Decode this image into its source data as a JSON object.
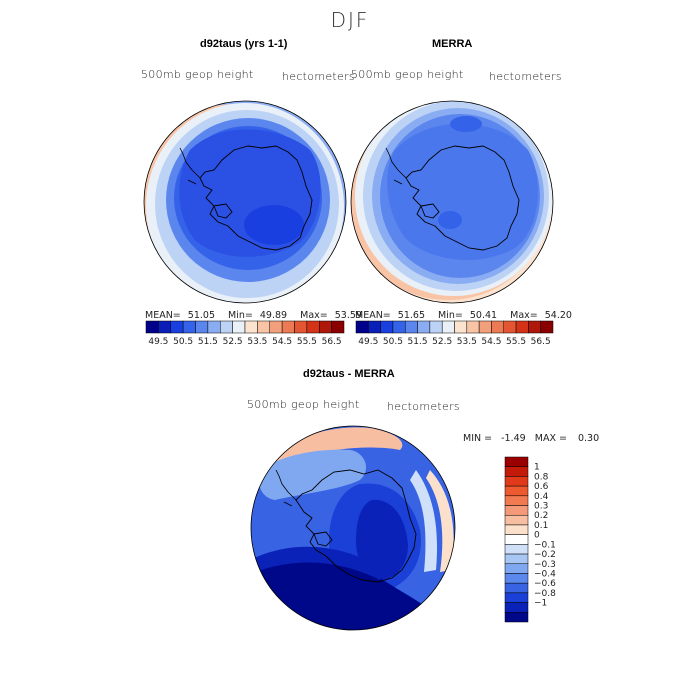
{
  "figure": {
    "season": "DJF"
  },
  "panels": {
    "left": {
      "title": "d92taus (yrs 1-1)",
      "field_label": "500mb geop height",
      "units": "hectometers",
      "mean_label": "MEAN=",
      "mean": "51.05",
      "min_label": "Min=",
      "min": "49.89",
      "max_label": "Max=",
      "max": "53.59"
    },
    "right": {
      "title": "MERRA",
      "field_label": "500mb geop height",
      "units": "hectometers",
      "mean_label": "MEAN=",
      "mean": "51.65",
      "min_label": "Min=",
      "min": "50.41",
      "max_label": "Max=",
      "max": "54.20"
    },
    "diff": {
      "title": "d92taus - MERRA",
      "field_label": "500mb geop height",
      "units": "hectometers",
      "min_label": "MIN =",
      "min": "-1.49",
      "max_label": "MAX =",
      "max": "0.30"
    }
  },
  "chart_data": [
    {
      "type": "heatmap",
      "title": "d92taus (yrs 1-1)",
      "projection": "south polar stereographic",
      "colorbar": {
        "orientation": "horizontal",
        "levels": [
          "49.5",
          "50.5",
          "51.5",
          "52.5",
          "53.5",
          "54.5",
          "55.5",
          "56.5"
        ],
        "colors": [
          "#00008a",
          "#0a1fb8",
          "#1a3fe0",
          "#3462e8",
          "#5a86ee",
          "#8aacf2",
          "#bcd3f6",
          "#e9f0f8",
          "#fbe3cf",
          "#f8c4a5",
          "#f2a07c",
          "#ec7a55",
          "#e45632",
          "#d43318",
          "#b0170b",
          "#8a0000"
        ]
      },
      "stats": {
        "mean": 51.05,
        "min": 49.89,
        "max": 53.59
      }
    },
    {
      "type": "heatmap",
      "title": "MERRA",
      "projection": "south polar stereographic",
      "colorbar": {
        "orientation": "horizontal",
        "levels": [
          "49.5",
          "50.5",
          "51.5",
          "52.5",
          "53.5",
          "54.5",
          "55.5",
          "56.5"
        ],
        "colors": [
          "#00008a",
          "#0a1fb8",
          "#1a3fe0",
          "#3462e8",
          "#5a86ee",
          "#8aacf2",
          "#bcd3f6",
          "#e9f0f8",
          "#fbe3cf",
          "#f8c4a5",
          "#f2a07c",
          "#ec7a55",
          "#e45632",
          "#d43318",
          "#b0170b",
          "#8a0000"
        ]
      },
      "stats": {
        "mean": 51.65,
        "min": 50.41,
        "max": 54.2
      }
    },
    {
      "type": "heatmap",
      "title": "d92taus - MERRA",
      "projection": "south polar stereographic",
      "colorbar": {
        "orientation": "vertical",
        "levels": [
          "1",
          "0.8",
          "0.6",
          "0.4",
          "0.3",
          "0.2",
          "0.1",
          "0",
          "−0.1",
          "−0.2",
          "−0.3",
          "−0.4",
          "−0.6",
          "−0.8",
          "−1"
        ],
        "colors": [
          "#9a0000",
          "#c41a0a",
          "#e03a1a",
          "#ee5a30",
          "#f27a50",
          "#f59a78",
          "#f8bea2",
          "#fbe0cc",
          "#ffffff",
          "#cfe0f8",
          "#a8c6f4",
          "#80a8f0",
          "#5a88ec",
          "#3864e4",
          "#1a40d8",
          "#0a22b8",
          "#00088a"
        ]
      },
      "stats": {
        "min": -1.49,
        "max": 0.3
      }
    }
  ]
}
